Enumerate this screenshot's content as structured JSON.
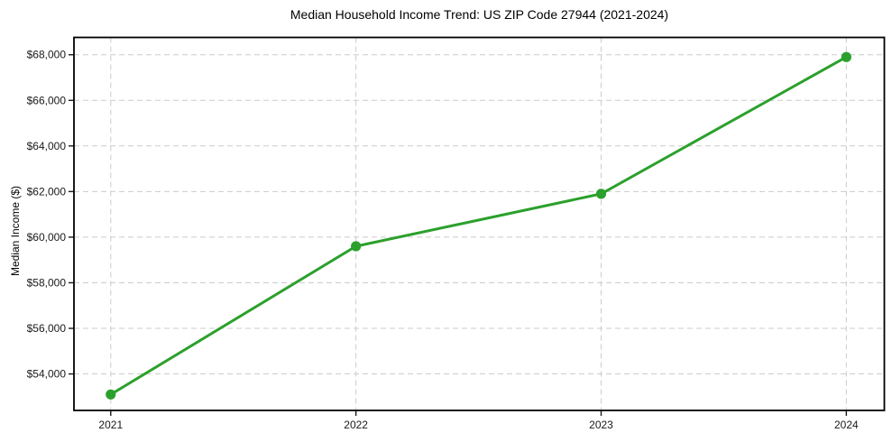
{
  "chart_data": {
    "type": "line",
    "title": "Median Household Income Trend: US ZIP Code 27944 (2021-2024)",
    "xlabel": "",
    "ylabel": "Median Income ($)",
    "x": [
      2021,
      2022,
      2023,
      2024
    ],
    "xtick_labels": [
      "2021",
      "2022",
      "2023",
      "2024"
    ],
    "series": [
      {
        "name": "Median Household Income",
        "values": [
          53100,
          59600,
          61900,
          67900
        ]
      }
    ],
    "ytick_values": [
      54000,
      56000,
      58000,
      60000,
      62000,
      64000,
      66000,
      68000
    ],
    "ytick_labels": [
      "$54,000",
      "$56,000",
      "$58,000",
      "$60,000",
      "$62,000",
      "$64,000",
      "$66,000",
      "$68,000"
    ],
    "xlim": [
      2020.85,
      2024.155
    ],
    "ylim": [
      52400,
      68760
    ],
    "grid": true,
    "grid_style": "dashed",
    "grid_color": "#cccccc",
    "legend": "none",
    "line_color": "#2ca02c",
    "marker": "circle",
    "background": "#ffffff"
  }
}
